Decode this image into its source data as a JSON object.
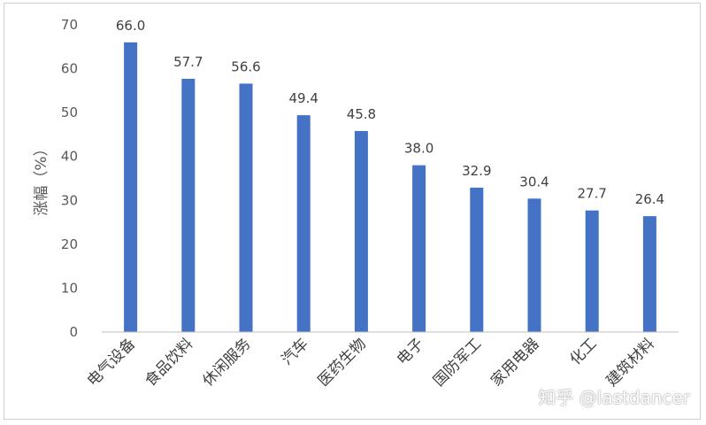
{
  "chart_data": {
    "type": "bar",
    "categories": [
      "电气设备",
      "食品饮料",
      "休闲服务",
      "汽车",
      "医药生物",
      "电子",
      "国防军工",
      "家用电器",
      "化工",
      "建筑材料"
    ],
    "values": [
      66.0,
      57.7,
      56.6,
      49.4,
      45.8,
      38.0,
      32.9,
      30.4,
      27.7,
      26.4
    ],
    "ylabel": "涨幅（%）",
    "ylim": [
      0,
      70
    ],
    "yticks": [
      0,
      10,
      20,
      30,
      40,
      50,
      60,
      70
    ],
    "grid": false,
    "bar_color": "#4472C4",
    "data_labels": true
  },
  "watermark": "知乎 @lastdancer"
}
